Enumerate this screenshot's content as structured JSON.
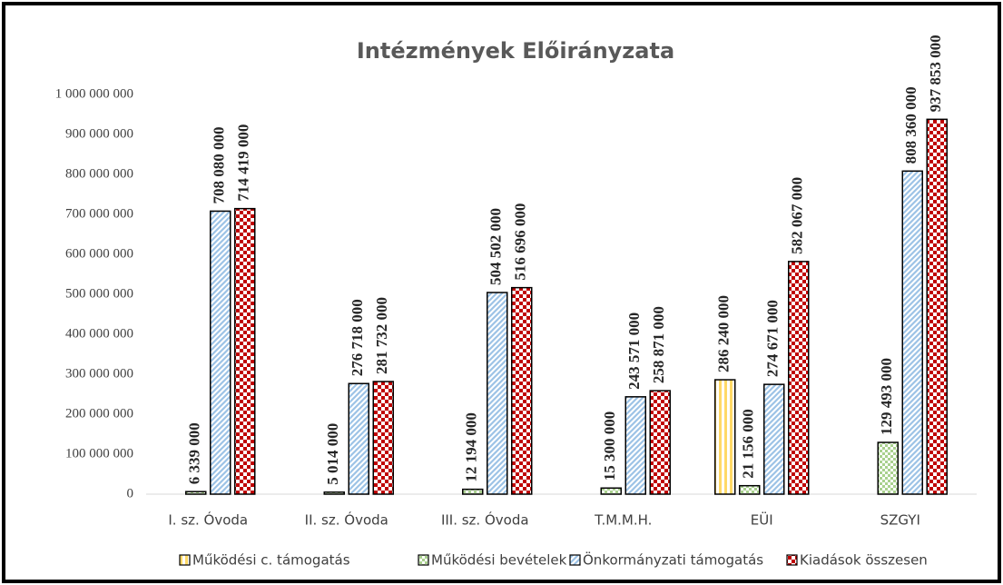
{
  "chart_data": {
    "type": "bar",
    "title": "Intézmények Előirányzata",
    "categories": [
      "I. sz. Óvoda",
      "II. sz. Óvoda",
      "III. sz. Óvoda",
      "T.M.M.H.",
      "EÜI",
      "SZGYI"
    ],
    "series": [
      {
        "name": "Működési c. támogatás",
        "color": "#ffd966",
        "values": [
          null,
          null,
          null,
          null,
          286240000,
          null
        ],
        "value_labels": [
          null,
          null,
          null,
          null,
          "286 240 000",
          null
        ]
      },
      {
        "name": "Működési bevételek",
        "color": "#a9d18e",
        "values": [
          6339000,
          5014000,
          12194000,
          15300000,
          21156000,
          129493000
        ],
        "value_labels": [
          "6 339 000",
          "5 014 000",
          "12 194 000",
          "15 300 000",
          "21 156 000",
          "129 493 000"
        ]
      },
      {
        "name": "Önkormányzati támogatás",
        "color": "#9dc3e6",
        "values": [
          708080000,
          276718000,
          504502000,
          243571000,
          274671000,
          808360000
        ],
        "value_labels": [
          "708 080 000",
          "276 718 000",
          "504 502 000",
          "243 571 000",
          "274 671 000",
          "808 360 000"
        ]
      },
      {
        "name": "Kiadások összesen",
        "color": "#c00000",
        "values": [
          714419000,
          281732000,
          516696000,
          258871000,
          582067000,
          937853000
        ],
        "value_labels": [
          "714 419 000",
          "281 732 000",
          "516 696 000",
          "258 871 000",
          "582 067 000",
          "937 853 000"
        ]
      }
    ],
    "ylim": [
      0,
      1000000000
    ],
    "yticks": [
      0,
      {
        "value": 100000000,
        "label": "100 000 000"
      },
      {
        "value": 200000000,
        "label": "200 000 000"
      },
      {
        "value": 300000000,
        "label": "300 000 000"
      },
      {
        "value": 400000000,
        "label": "400 000 000"
      },
      {
        "value": 500000000,
        "label": "500 000 000"
      },
      {
        "value": 600000000,
        "label": "600 000 000"
      },
      {
        "value": 700000000,
        "label": "700 000 000"
      },
      {
        "value": 800000000,
        "label": "800 000 000"
      },
      {
        "value": 900000000,
        "label": "900 000 000"
      },
      {
        "value": 1000000000,
        "label": "1 000 000 000"
      }
    ],
    "grid": false,
    "legend": "bottom"
  }
}
